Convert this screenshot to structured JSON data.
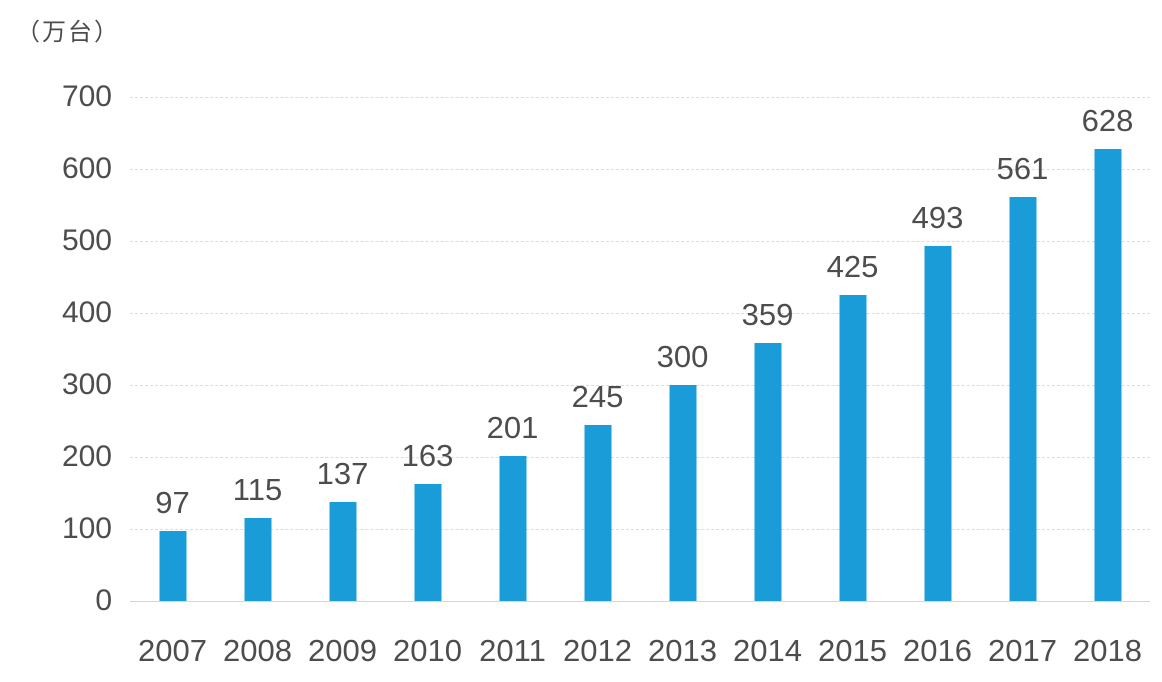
{
  "chart_data": {
    "type": "bar",
    "title": "",
    "unit_label": "（万台）",
    "categories": [
      "2007",
      "2008",
      "2009",
      "2010",
      "2011",
      "2012",
      "2013",
      "2014",
      "2015",
      "2016",
      "2017",
      "2018"
    ],
    "values": [
      97,
      115,
      137,
      163,
      201,
      245,
      300,
      359,
      425,
      493,
      561,
      628
    ],
    "xlabel": "",
    "ylabel": "",
    "ylim": [
      0,
      700
    ],
    "yticks": [
      0,
      100,
      200,
      300,
      400,
      500,
      600,
      700
    ],
    "bar_color": "#1a9cd8",
    "grid": true,
    "legend_position": "none",
    "data_labels_shown": true
  }
}
